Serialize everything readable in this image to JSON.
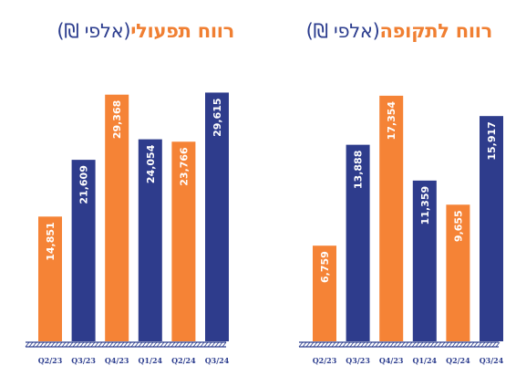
{
  "colors": {
    "orange": "#f58336",
    "navy": "#2e3c8c",
    "axis": "#2c3d8e"
  },
  "chart_data": [
    {
      "type": "bar",
      "title_main": "רווח תפעולי",
      "title_unit": "(אלפי ₪)",
      "categories": [
        "Q2/23",
        "Q3/23",
        "Q4/23",
        "Q1/24",
        "Q2/24",
        "Q3/24"
      ],
      "values": [
        14851,
        21609,
        29368,
        24054,
        23766,
        29615
      ],
      "value_labels": [
        "14,851",
        "21,609",
        "29,368",
        "24,054",
        "23,766",
        "29,615"
      ],
      "bar_colors": [
        "orange",
        "navy",
        "orange",
        "navy",
        "orange",
        "navy"
      ],
      "ylim": [
        0,
        30750
      ],
      "grid": false
    },
    {
      "type": "bar",
      "title_main": "רווח לתקופה",
      "title_unit": "(אלפי ₪)",
      "categories": [
        "Q2/23",
        "Q3/23",
        "Q4/23",
        "Q1/24",
        "Q2/24",
        "Q3/24"
      ],
      "values": [
        6759,
        13888,
        17354,
        11359,
        9655,
        15917
      ],
      "value_labels": [
        "6,759",
        "13,888",
        "17,354",
        "11,359",
        "9,655",
        "15,917"
      ],
      "bar_colors": [
        "orange",
        "navy",
        "orange",
        "navy",
        "orange",
        "navy"
      ],
      "ylim": [
        0,
        18250
      ],
      "grid": false
    }
  ]
}
